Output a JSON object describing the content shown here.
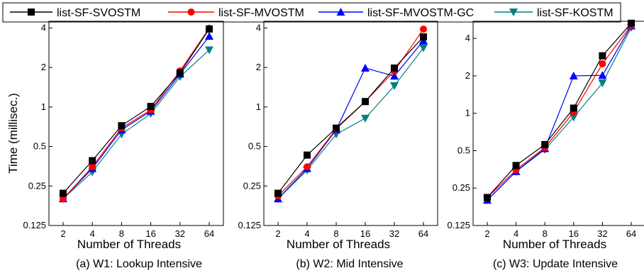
{
  "colors": {
    "list-SF-SVOSTM": "#000000",
    "list-SF-MVOSTM": "#ff0000",
    "list-SF-MVOSTM-GC": "#0000ff",
    "list-SF-KOSTM": "#008080"
  },
  "markers": {
    "list-SF-SVOSTM": "square",
    "list-SF-MVOSTM": "circle",
    "list-SF-MVOSTM-GC": "triangle-up",
    "list-SF-KOSTM": "triangle-down"
  },
  "legend": {
    "placement": "top-center",
    "entries": [
      "list-SF-SVOSTM",
      "list-SF-MVOSTM",
      "list-SF-MVOSTM-GC",
      "list-SF-KOSTM"
    ]
  },
  "shared_ylabel": "Time (millisec.)",
  "chart_data": [
    {
      "type": "line",
      "caption": "(a) W1: Lookup Intensive",
      "xlabel": "Number of Threads",
      "ylabel": "Time (millisec.)",
      "categories": [
        "2",
        "4",
        "8",
        "16",
        "32",
        "64"
      ],
      "yscale": "log2",
      "yticks": [
        "0.125",
        "0.25",
        "0.5",
        "1",
        "2",
        "4"
      ],
      "ylim": [
        0.125,
        4.5
      ],
      "series": [
        {
          "name": "list-SF-SVOSTM",
          "values": [
            0.22,
            0.39,
            0.72,
            1.01,
            1.82,
            3.93
          ]
        },
        {
          "name": "list-SF-MVOSTM",
          "values": [
            0.2,
            0.35,
            0.69,
            0.95,
            1.88,
            3.98
          ]
        },
        {
          "name": "list-SF-MVOSTM-GC",
          "values": [
            0.2,
            0.34,
            0.67,
            0.93,
            1.78,
            3.46
          ]
        },
        {
          "name": "list-SF-KOSTM",
          "values": [
            0.2,
            0.32,
            0.62,
            0.89,
            1.7,
            2.72
          ]
        }
      ]
    },
    {
      "type": "line",
      "caption": "(b) W2: Mid Intensive",
      "xlabel": "Number of Threads",
      "ylabel": "",
      "categories": [
        "2",
        "4",
        "8",
        "16",
        "32",
        "64"
      ],
      "yscale": "log2",
      "yticks": [
        "0.125",
        "0.25",
        "0.5",
        "1",
        "2",
        "4"
      ],
      "ylim": [
        0.125,
        4.5
      ],
      "series": [
        {
          "name": "list-SF-SVOSTM",
          "values": [
            0.22,
            0.43,
            0.69,
            1.1,
            1.98,
            3.42
          ]
        },
        {
          "name": "list-SF-MVOSTM",
          "values": [
            0.21,
            0.35,
            0.68,
            1.1,
            1.88,
            3.92
          ]
        },
        {
          "name": "list-SF-MVOSTM-GC",
          "values": [
            0.2,
            0.34,
            0.67,
            1.98,
            1.72,
            3.2
          ]
        },
        {
          "name": "list-SF-KOSTM",
          "values": [
            0.2,
            0.33,
            0.62,
            0.82,
            1.45,
            2.82
          ]
        }
      ]
    },
    {
      "type": "line",
      "caption": "(c) W3: Update Intensive",
      "xlabel": "Number of Threads",
      "ylabel": "",
      "categories": [
        "2",
        "4",
        "8",
        "16",
        "32",
        "64"
      ],
      "yscale": "log2",
      "yticks": [
        "0.125",
        "0.25",
        "0.5",
        "1",
        "2",
        "4"
      ],
      "ylim": [
        0.125,
        5.5
      ],
      "series": [
        {
          "name": "list-SF-SVOSTM",
          "values": [
            0.21,
            0.38,
            0.56,
            1.1,
            2.9,
            5.3
          ]
        },
        {
          "name": "list-SF-MVOSTM",
          "values": [
            0.21,
            0.35,
            0.53,
            1.02,
            2.5,
            5.1
          ]
        },
        {
          "name": "list-SF-MVOSTM-GC",
          "values": [
            0.2,
            0.34,
            0.52,
            2.0,
            2.02,
            5.05
          ]
        },
        {
          "name": "list-SF-KOSTM",
          "values": [
            0.2,
            0.34,
            0.51,
            0.93,
            1.75,
            4.9
          ]
        }
      ]
    }
  ]
}
